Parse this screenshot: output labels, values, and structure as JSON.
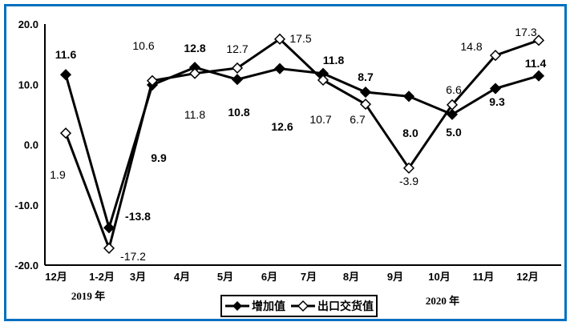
{
  "chart_data": {
    "type": "line",
    "categories": [
      "12月",
      "1-2月",
      "3月",
      "4月",
      "5月",
      "6月",
      "7月",
      "8月",
      "9月",
      "10月",
      "11月",
      "12月"
    ],
    "year_labels": [
      "2019 年",
      "2020 年"
    ],
    "ylim": [
      -20,
      20
    ],
    "yticks": [
      "20.0",
      "10.0",
      "0.0",
      "-10.0",
      "-20.0"
    ],
    "series": [
      {
        "name": "增加值",
        "marker": "filled-diamond",
        "values": [
          11.6,
          -13.8,
          9.9,
          12.8,
          10.8,
          12.6,
          11.8,
          8.7,
          8.0,
          5.0,
          9.3,
          11.4
        ],
        "labels": [
          "11.6",
          "-13.8",
          "9.9",
          "12.8",
          "10.8",
          "12.6",
          "11.8",
          "8.7",
          "8.0",
          "5.0",
          "9.3",
          "11.4"
        ]
      },
      {
        "name": "出口交货值",
        "marker": "hollow-diamond",
        "values": [
          1.9,
          -17.2,
          10.6,
          11.8,
          12.7,
          17.5,
          10.7,
          6.7,
          -3.9,
          6.6,
          14.8,
          17.3
        ],
        "labels": [
          "1.9",
          "-17.2",
          "10.6",
          "11.8",
          "12.7",
          "17.5",
          "10.7",
          "6.7",
          "-3.9",
          "6.6",
          "14.8",
          "17.3"
        ]
      }
    ],
    "legend": "bottom-center",
    "grid": false
  },
  "colors": {
    "frame": "#0070c0",
    "line": "#000000"
  }
}
